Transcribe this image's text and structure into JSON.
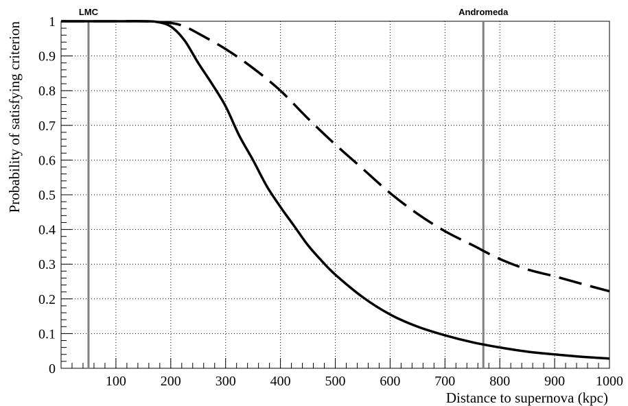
{
  "chart_data": {
    "type": "line",
    "title": "",
    "xlabel": "Distance to supernova (kpc)",
    "ylabel": "Probability of satisfying criterion",
    "xlim": [
      0,
      1000
    ],
    "ylim": [
      0,
      1
    ],
    "grid": true,
    "x_ticks": [
      100,
      200,
      300,
      400,
      500,
      600,
      700,
      800,
      900,
      1000
    ],
    "x_tick_labels": [
      "100",
      "200",
      "300",
      "400",
      "500",
      "600",
      "700",
      "800",
      "900",
      "1000"
    ],
    "y_ticks": [
      0,
      0.1,
      0.2,
      0.3,
      0.4,
      0.5,
      0.6,
      0.7,
      0.8,
      0.9,
      1
    ],
    "y_tick_labels": [
      "0",
      "0.1",
      "0.2",
      "0.3",
      "0.4",
      "0.5",
      "0.6",
      "0.7",
      "0.8",
      "0.9",
      "1"
    ],
    "markers": [
      {
        "label": "LMC",
        "x": 50,
        "color": "#808080"
      },
      {
        "label": "Andromeda",
        "x": 770,
        "color": "#808080"
      }
    ],
    "series": [
      {
        "style": "solid",
        "color": "#000000",
        "x": [
          0,
          100,
          150,
          175,
          200,
          225,
          250,
          275,
          300,
          325,
          350,
          375,
          400,
          425,
          450,
          475,
          500,
          550,
          600,
          650,
          700,
          750,
          800,
          850,
          900,
          950,
          1000
        ],
        "y": [
          1.0,
          1.0,
          1.0,
          0.998,
          0.985,
          0.945,
          0.88,
          0.82,
          0.755,
          0.67,
          0.6,
          0.525,
          0.465,
          0.41,
          0.355,
          0.31,
          0.27,
          0.205,
          0.155,
          0.12,
          0.095,
          0.075,
          0.06,
          0.048,
          0.04,
          0.033,
          0.028
        ]
      },
      {
        "style": "dashed",
        "color": "#000000",
        "x": [
          0,
          100,
          150,
          200,
          225,
          250,
          300,
          350,
          400,
          450,
          500,
          550,
          600,
          650,
          700,
          750,
          800,
          850,
          900,
          950,
          1000
        ],
        "y": [
          1.0,
          1.0,
          1.0,
          0.995,
          0.985,
          0.965,
          0.92,
          0.865,
          0.8,
          0.72,
          0.645,
          0.575,
          0.505,
          0.445,
          0.395,
          0.355,
          0.315,
          0.285,
          0.265,
          0.243,
          0.222
        ]
      }
    ]
  }
}
